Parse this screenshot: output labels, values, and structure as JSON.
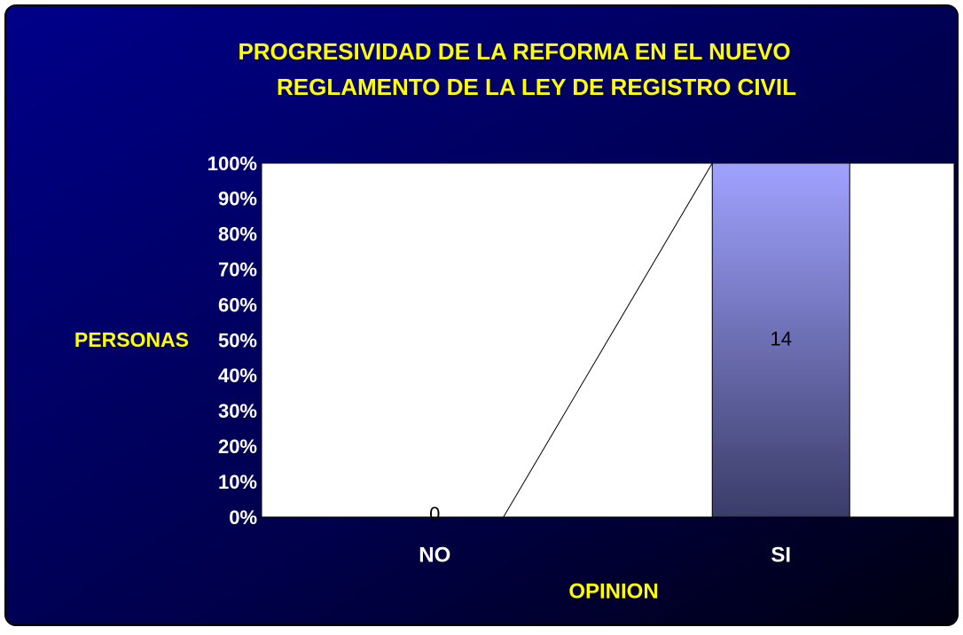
{
  "chart_data": {
    "type": "bar",
    "stacked": "percent",
    "title": [
      "PROGRESIVIDAD DE LA REFORMA  EN EL NUEVO",
      "REGLAMENTO DE LA LEY DE REGISTRO CIVIL"
    ],
    "x_label": "OPINION",
    "y_label": "PERSONAS",
    "categories": [
      "NO",
      "SI"
    ],
    "series": [
      {
        "name": "PERSONAS",
        "color": "#9a9cff",
        "values": [
          0,
          14
        ]
      }
    ],
    "ylim": [
      0,
      100
    ],
    "yticks": [
      {
        "value": 0,
        "label": "0%"
      },
      {
        "value": 10,
        "label": "10%"
      },
      {
        "value": 20,
        "label": "20%"
      },
      {
        "value": 30,
        "label": "30%"
      },
      {
        "value": 40,
        "label": "40%"
      },
      {
        "value": 50,
        "label": "50%"
      },
      {
        "value": 60,
        "label": "60%"
      },
      {
        "value": 70,
        "label": "70%"
      },
      {
        "value": 80,
        "label": "80%"
      },
      {
        "value": 90,
        "label": "90%"
      },
      {
        "value": 100,
        "label": "100%"
      }
    ],
    "series_lines": true
  }
}
